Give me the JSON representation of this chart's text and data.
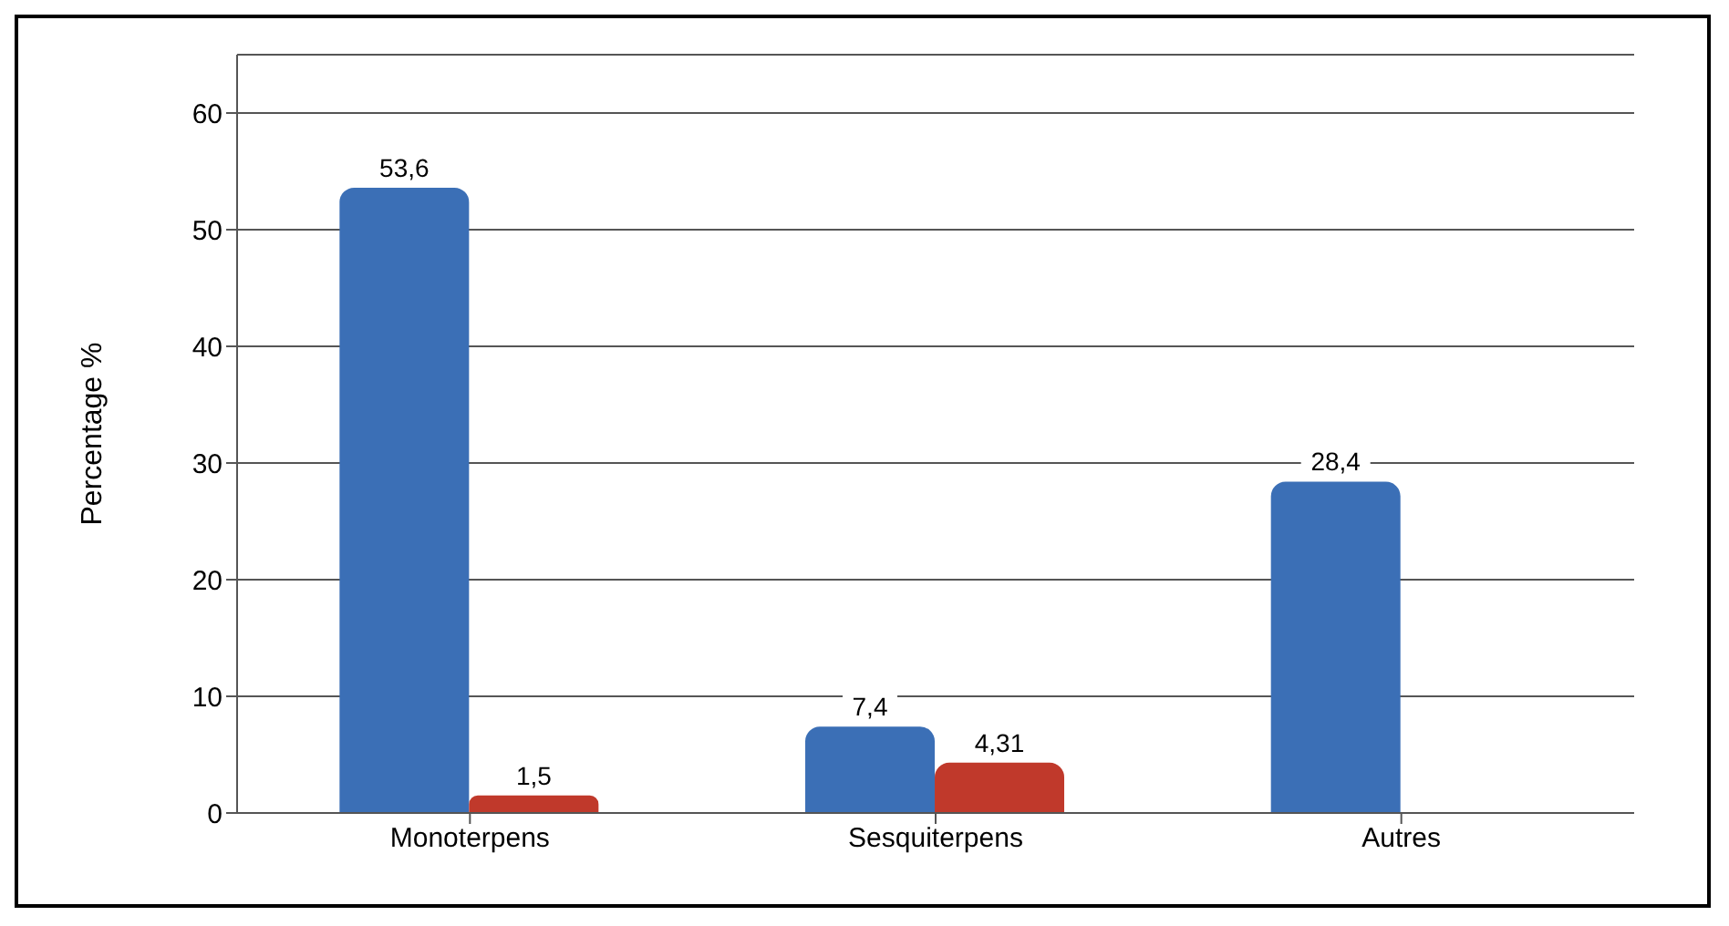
{
  "chart_data": {
    "type": "bar",
    "ylabel": "Percentage %",
    "categories": [
      "Monoterpens",
      "Sesquiterpens",
      "Autres"
    ],
    "series": [
      {
        "color": "#3b6fb6",
        "values": [
          53.6,
          7.4,
          28.4
        ],
        "value_labels": [
          "53,6",
          "7,4",
          "28,4"
        ]
      },
      {
        "color": "#c0392b",
        "values": [
          1.5,
          4.31,
          null
        ],
        "value_labels": [
          "1,5",
          "4,31",
          null
        ]
      }
    ],
    "ylim": [
      0,
      65
    ],
    "yticks": [
      0,
      10,
      20,
      30,
      40,
      50,
      60
    ],
    "grid": "y",
    "legend": false
  }
}
